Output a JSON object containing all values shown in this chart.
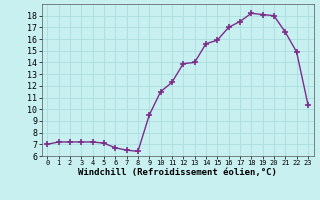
{
  "x": [
    0,
    1,
    2,
    3,
    4,
    5,
    6,
    7,
    8,
    9,
    10,
    11,
    12,
    13,
    14,
    15,
    16,
    17,
    18,
    19,
    20,
    21,
    22,
    23
  ],
  "y": [
    7.0,
    7.2,
    7.2,
    7.2,
    7.2,
    7.1,
    6.7,
    6.5,
    6.4,
    9.5,
    11.5,
    12.3,
    13.9,
    14.0,
    15.6,
    15.9,
    17.0,
    17.5,
    18.2,
    18.1,
    18.0,
    16.6,
    14.9,
    10.4
  ],
  "line_color": "#7b2d8b",
  "marker": "+",
  "marker_size": 4,
  "marker_linewidth": 1.2,
  "bg_color": "#c8f0f0",
  "grid_color": "#aadddd",
  "xlabel": "Windchill (Refroidissement éolien,°C)",
  "xlabel_fontsize": 6.5,
  "tick_fontsize": 6,
  "ylim": [
    6,
    19
  ],
  "xlim": [
    -0.5,
    23.5
  ],
  "yticks": [
    6,
    7,
    8,
    9,
    10,
    11,
    12,
    13,
    14,
    15,
    16,
    17,
    18
  ],
  "xticks": [
    0,
    1,
    2,
    3,
    4,
    5,
    6,
    7,
    8,
    9,
    10,
    11,
    12,
    13,
    14,
    15,
    16,
    17,
    18,
    19,
    20,
    21,
    22,
    23
  ]
}
